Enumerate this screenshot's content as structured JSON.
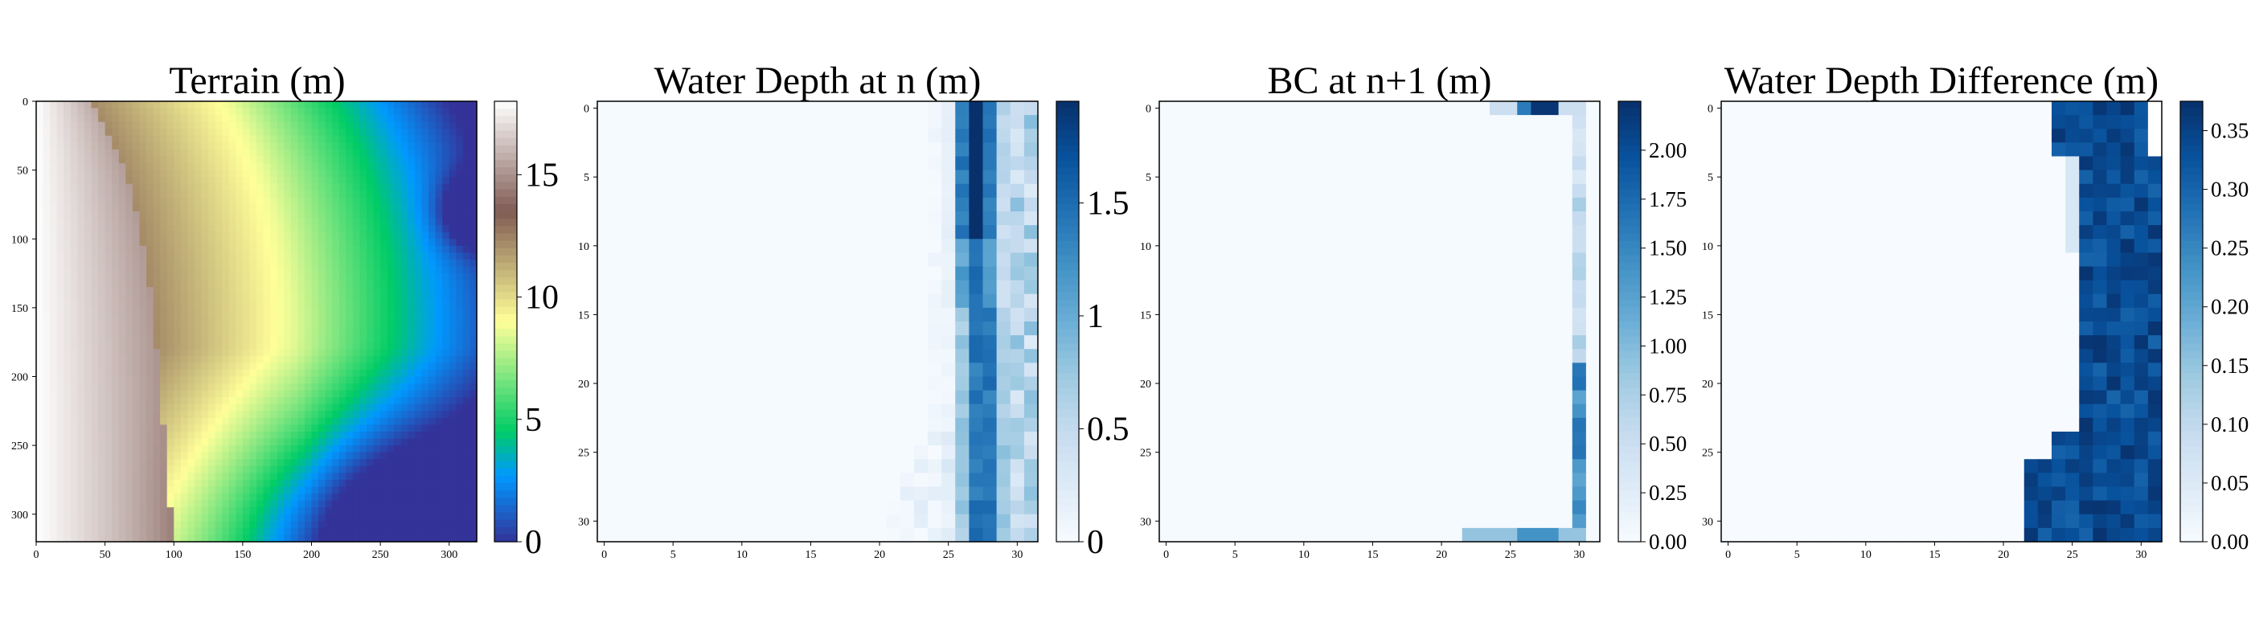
{
  "chart_data": [
    {
      "type": "heatmap",
      "title": "Terrain (m)",
      "colormap": "terrain",
      "grid_size": [
        320,
        320
      ],
      "xticks": [
        0,
        50,
        100,
        150,
        200,
        250,
        300
      ],
      "yticks": [
        0,
        50,
        100,
        150,
        200,
        250,
        300
      ],
      "xlim": [
        0,
        320
      ],
      "ylim": [
        320,
        0
      ],
      "colorbar": {
        "min": 0,
        "max": 18,
        "ticks": [
          0,
          5,
          10,
          15
        ]
      },
      "description_values": {
        "ridge_top_left_max": 18,
        "valley_bottom_min": 0,
        "right_edge_min_near_row_80": 2
      }
    },
    {
      "type": "heatmap",
      "title": "Water Depth at n (m)",
      "colormap": "Blues",
      "grid_size": [
        32,
        32
      ],
      "xticks": [
        0,
        5,
        10,
        15,
        20,
        25,
        30
      ],
      "yticks": [
        0,
        5,
        10,
        15,
        20,
        25,
        30
      ],
      "colorbar": {
        "min": 0,
        "max": 1.95,
        "ticks": [
          0.0,
          0.5,
          1.0,
          1.5
        ]
      }
    },
    {
      "type": "heatmap",
      "title": "BC at n+1 (m)",
      "colormap": "Blues",
      "grid_size": [
        32,
        32
      ],
      "xticks": [
        0,
        5,
        10,
        15,
        20,
        25,
        30
      ],
      "yticks": [
        0,
        5,
        10,
        15,
        20,
        25,
        30
      ],
      "colorbar": {
        "min": 0,
        "max": 2.25,
        "ticks": [
          "0.00",
          "0.25",
          "0.50",
          "0.75",
          "1.00",
          "1.25",
          "1.50",
          "1.75",
          "2.00"
        ]
      }
    },
    {
      "type": "heatmap",
      "title": "Water Depth Difference (m)",
      "colormap": "Blues",
      "grid_size": [
        32,
        32
      ],
      "xticks": [
        0,
        5,
        10,
        15,
        20,
        25,
        30
      ],
      "yticks": [
        0,
        5,
        10,
        15,
        20,
        25,
        30
      ],
      "colorbar": {
        "min": 0,
        "max": 0.375,
        "ticks": [
          "0.00",
          "0.05",
          "0.10",
          "0.15",
          "0.20",
          "0.25",
          "0.30",
          "0.35"
        ]
      }
    }
  ]
}
